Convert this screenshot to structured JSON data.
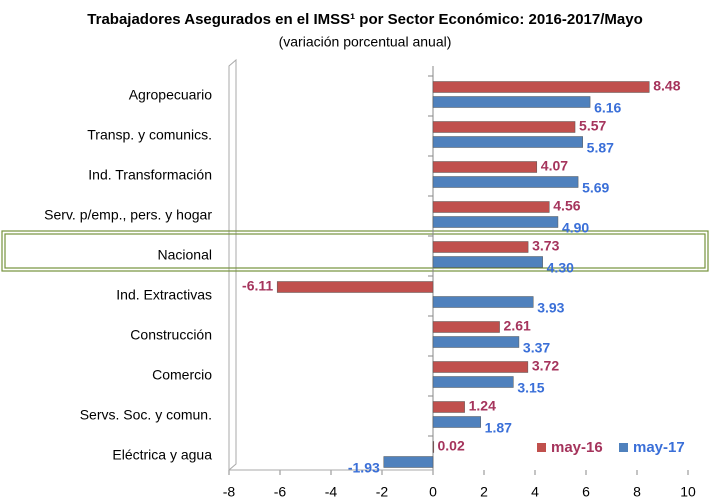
{
  "chart_data": {
    "type": "hbar",
    "title": "Trabajadores Asegurados en el IMSS¹ por Sector Económico: 2016-2017/Mayo",
    "subtitle": "(variación porcentual anual)",
    "categories": [
      "Agropecuario",
      "Transp. y comunics.",
      "Ind. Transformación",
      "Serv. p/emp., pers. y hogar",
      "Nacional",
      "Ind. Extractivas",
      "Construcción",
      "Comercio",
      "Servs. Soc. y comun.",
      "Eléctrica y agua"
    ],
    "series": [
      {
        "name": "may-16",
        "color": "#c0504d",
        "values": [
          8.48,
          5.57,
          4.07,
          4.56,
          3.73,
          -6.11,
          2.61,
          3.72,
          1.24,
          0.02
        ],
        "value_labels": [
          "8.48",
          "5.57",
          "4.07",
          "4.56",
          "3.73",
          "-6.11",
          "2.61",
          "3.72",
          "1.24",
          "0.02"
        ]
      },
      {
        "name": "may-17",
        "color": "#4f81bd",
        "values": [
          6.16,
          5.87,
          5.69,
          4.9,
          4.3,
          3.93,
          3.37,
          3.15,
          1.87,
          -1.93
        ],
        "value_labels": [
          "6.16",
          "5.87",
          "5.69",
          "4.90",
          "4.30",
          "3.93",
          "3.37",
          "3.15",
          "1.87",
          "-1.93"
        ]
      }
    ],
    "xlim": [
      -8,
      10
    ],
    "xticks": [
      -8,
      -6,
      -4,
      -2,
      0,
      2,
      4,
      6,
      8,
      10
    ],
    "legend": "lower right"
  }
}
